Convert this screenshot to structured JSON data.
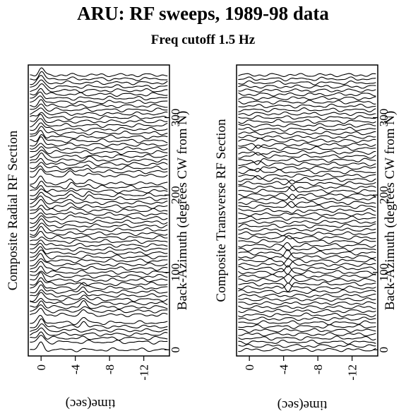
{
  "title": "ARU: RF sweeps, 1989-98 data",
  "subtitle": "Freq cutoff 1.5 Hz",
  "chart_data": [
    {
      "type": "line",
      "panel_label": "Composite Radial RF Section",
      "xlabel": "time(sec)",
      "ylabel": "Back-Azimuth (degrees CW from N)",
      "x_ticks": [
        "0",
        "-4",
        "-8",
        "-12"
      ],
      "x_tick_values": [
        0,
        -4,
        -8,
        -12
      ],
      "y_ticks": [
        "0",
        "100",
        "200",
        "300"
      ],
      "y_tick_values": [
        0,
        100,
        200,
        300
      ],
      "xlim": [
        1.5,
        -15
      ],
      "ylim": [
        -8,
        368
      ],
      "trace_spacing_deg": 5,
      "pulses": [
        {
          "t": 0,
          "amp": 1.0,
          "baz_range": [
            0,
            360
          ],
          "polarity": "positive"
        },
        {
          "t": -5,
          "amp": 0.8,
          "baz_range": [
            30,
            80
          ],
          "polarity": "positive"
        },
        {
          "t": -3.5,
          "amp": 0.6,
          "baz_range": [
            170,
            230
          ],
          "polarity": "positive"
        },
        {
          "t": -5.5,
          "amp": 0.5,
          "baz_range": [
            195,
            245
          ],
          "polarity": "positive"
        }
      ]
    },
    {
      "type": "line",
      "panel_label": "Composite Transverse RF Section",
      "xlabel": "time(sec)",
      "ylabel": "Back-Azimuth (degrees CW from N)",
      "x_ticks": [
        "0",
        "-4",
        "-8",
        "-12"
      ],
      "x_tick_values": [
        0,
        -4,
        -8,
        -12
      ],
      "y_ticks": [
        "0",
        "100",
        "200",
        "300"
      ],
      "y_tick_values": [
        0,
        100,
        200,
        300
      ],
      "xlim": [
        1.5,
        -15
      ],
      "ylim": [
        -8,
        368
      ],
      "trace_spacing_deg": 5,
      "pulses": [
        {
          "t": -4.5,
          "amp": 0.9,
          "baz_range": [
            80,
            140
          ],
          "polarity": "alternating"
        },
        {
          "t": -5,
          "amp": 0.6,
          "baz_range": [
            180,
            220
          ],
          "polarity": "alternating"
        },
        {
          "t": -1,
          "amp": 0.5,
          "baz_range": [
            220,
            270
          ],
          "polarity": "alternating"
        }
      ]
    }
  ]
}
